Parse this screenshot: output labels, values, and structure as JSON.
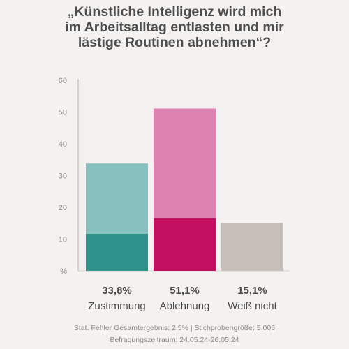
{
  "header": {
    "title_lines": [
      "„Künstliche Intelligenz wird mich",
      "im Arbeitsalltag entlasten und mir",
      "lästige Routinen abnehmen“?"
    ]
  },
  "chart_data": {
    "type": "bar",
    "title": "„Künstliche Intelligenz wird mich im Arbeitsalltag entlasten und mir lästige Routinen abnehmen“?",
    "categories": [
      "Zustimmung",
      "Ablehnung",
      "Weiß nicht"
    ],
    "value_labels": [
      "33,8%",
      "51,1%",
      "15,1%"
    ],
    "series": [
      {
        "name": "",
        "values": [
          11.7,
          16.5,
          15.1
        ]
      },
      {
        "name": "",
        "values": [
          22.1,
          34.6,
          0
        ]
      }
    ],
    "colors": {
      "dark": [
        "#2f938b",
        "#c0105f",
        "#c7bfba"
      ],
      "light": [
        "#86c1bf",
        "#dd82b1",
        "#c7bfba"
      ]
    },
    "y_ticks": [
      "%",
      "10",
      "20",
      "30",
      "40",
      "50",
      "60"
    ],
    "ylim": [
      0,
      60
    ],
    "ylabel": "%",
    "grid": false
  },
  "footer": {
    "line1": "Stat. Fehler Gesamtergebnis: 2,5% | Stichprobengröße: 5.006",
    "line2": "Befragungszeitraum: 24.05.24-26.05.24"
  }
}
